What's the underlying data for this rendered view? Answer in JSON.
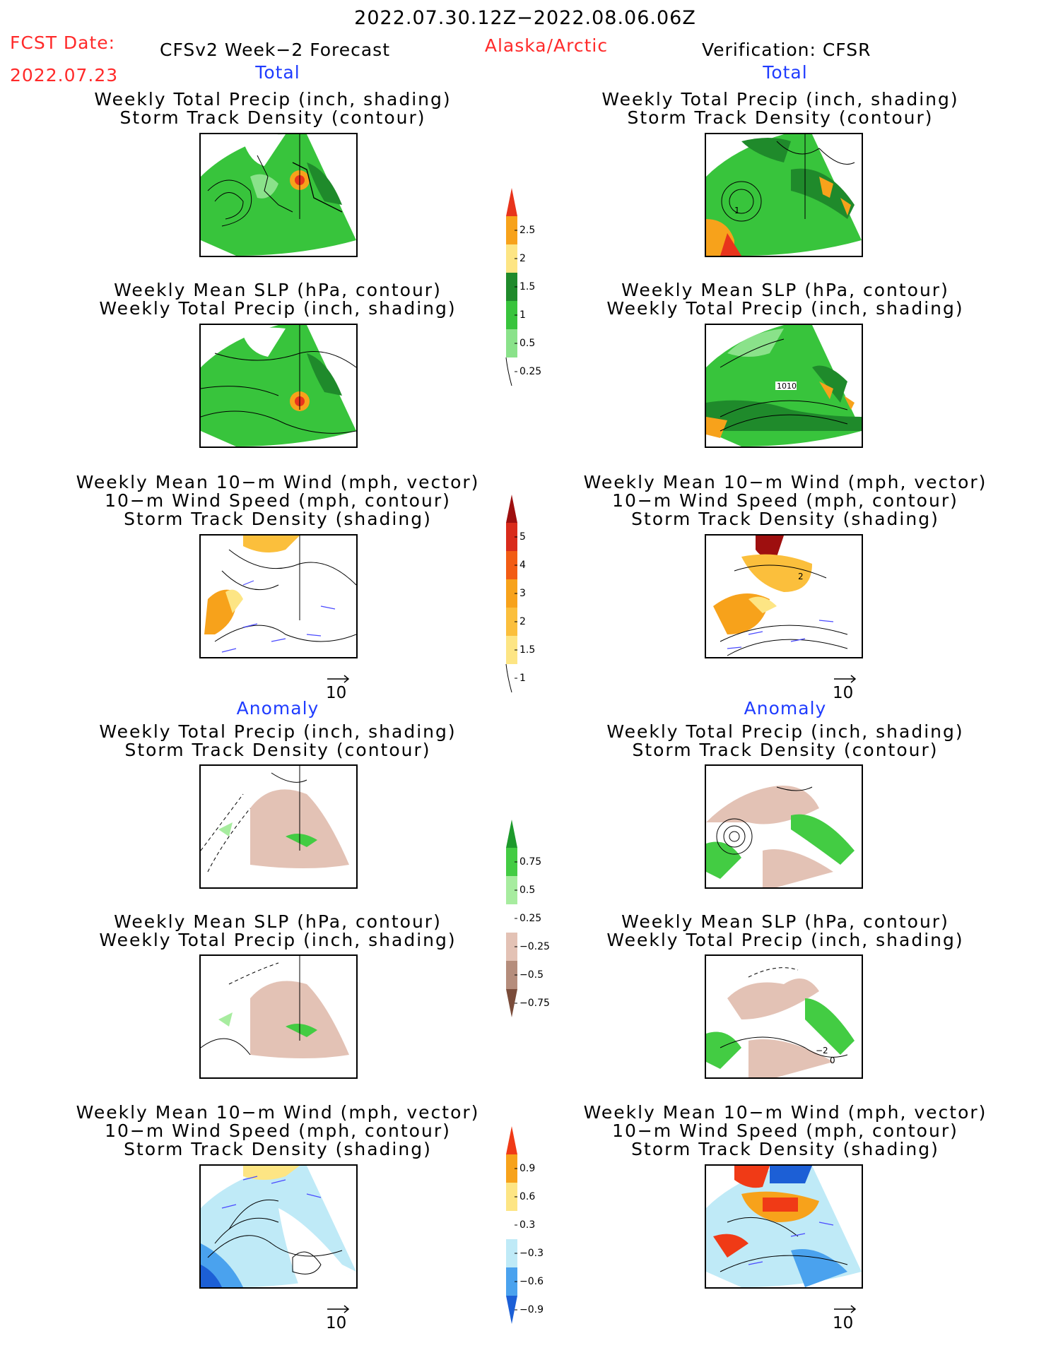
{
  "header": {
    "period": "2022.07.30.12Z−2022.08.06.06Z",
    "fcst_label": "FCST Date:",
    "fcst_date": "2022.07.23",
    "forecast_name": "CFSv2 Week−2 Forecast",
    "region": "Alaska/Arctic",
    "verification": "Verification: CFSR"
  },
  "sections": {
    "total": "Total",
    "anomaly": "Anomaly"
  },
  "titles": {
    "precip_track": [
      "Weekly Total Precip (inch, shading)",
      "Storm Track Density (contour)"
    ],
    "slp_precip": [
      "Weekly Mean SLP (hPa, contour)",
      "Weekly Total Precip (inch, shading)"
    ],
    "wind_track": [
      "Weekly Mean 10−m Wind (mph, vector)",
      "10−m Wind Speed (mph, contour)",
      "Storm Track Density (shading)"
    ]
  },
  "map_labels": {
    "obs_precip_contour": "1",
    "obs_slp_contour": "1010",
    "obs_wind_contour": "2",
    "obs_anom_slp_contour": "−2",
    "obs_anom_slp_zero": "0"
  },
  "vector_reference": "10",
  "colorbars": {
    "precip_total": {
      "ticks": [
        "2.5",
        "2",
        "1.5",
        "1",
        "0.5",
        "0.25"
      ],
      "colors": [
        "#e8341c",
        "#f7a21b",
        "#fde584",
        "#1f8a2b",
        "#38c43c",
        "#8ae28a",
        "#c7f3c3"
      ]
    },
    "track_total": {
      "ticks": [
        "5",
        "4",
        "3",
        "2",
        "1.5",
        "1"
      ],
      "colors": [
        "#9e0f0f",
        "#d92b1b",
        "#f25c14",
        "#f7a21b",
        "#fbbf3c",
        "#fde584",
        "#fffbd0"
      ]
    },
    "precip_anom": {
      "ticks": [
        "0.75",
        "0.5",
        "0.25",
        "−0.25",
        "−0.5",
        "−0.75"
      ],
      "colors": [
        "#1d9a2c",
        "#43cc43",
        "#a7ec9f",
        "#ffffff",
        "#e3c2b5",
        "#b58d7c",
        "#7a4c3a"
      ]
    },
    "track_anom": {
      "ticks": [
        "0.9",
        "0.6",
        "0.3",
        "−0.3",
        "−0.6",
        "−0.9"
      ],
      "colors": [
        "#f03a16",
        "#f7a21b",
        "#fde584",
        "#ffffff",
        "#bfeaf7",
        "#4aa2ee",
        "#1c5fd6"
      ]
    }
  }
}
